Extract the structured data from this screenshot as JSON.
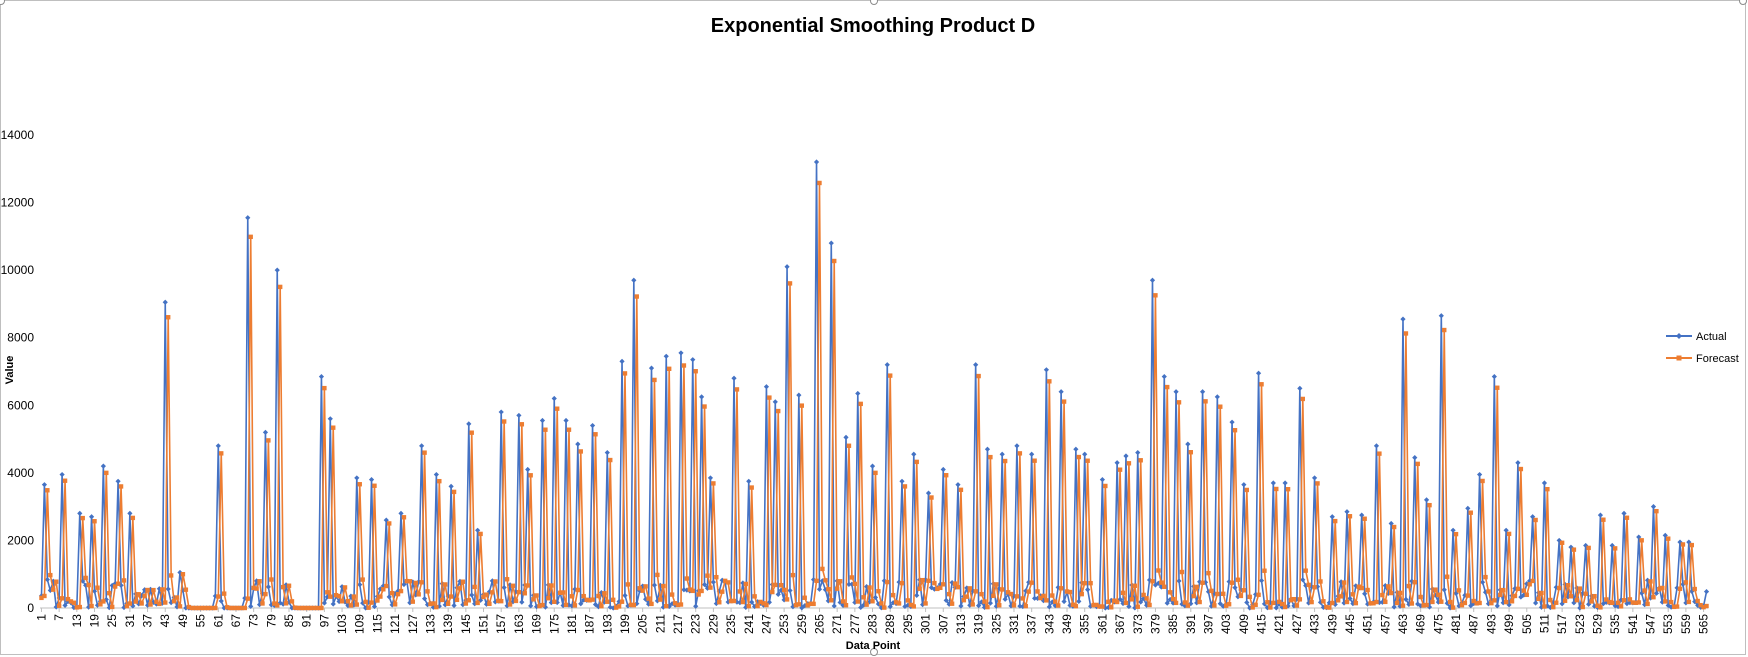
{
  "chart_data": {
    "type": "line",
    "title": "Exponential Smoothing Product D",
    "xlabel": "Data Point",
    "ylabel": "Value",
    "ylim": [
      0,
      14000
    ],
    "y_ticks": [
      0,
      2000,
      4000,
      6000,
      8000,
      10000,
      12000,
      14000
    ],
    "x_range": [
      1,
      566
    ],
    "x_tick_labels": [
      1,
      7,
      13,
      19,
      25,
      31,
      37,
      43,
      49,
      55,
      61,
      67,
      73,
      79,
      85,
      91,
      97,
      103,
      109,
      115,
      121,
      127,
      133,
      139,
      145,
      151,
      157,
      163,
      169,
      175,
      181,
      187,
      193,
      199,
      205,
      211,
      217,
      223,
      229,
      235,
      241,
      247,
      253,
      259,
      265,
      271,
      277,
      283,
      289,
      295,
      301,
      307,
      313,
      319,
      325,
      331,
      337,
      343,
      349,
      355,
      361,
      367,
      373,
      379,
      385,
      391,
      397,
      403,
      409,
      415,
      421,
      427,
      433,
      439,
      445,
      451,
      457,
      463,
      469,
      475,
      481,
      487,
      493,
      499,
      505,
      511,
      517,
      523,
      529,
      535,
      541,
      547,
      553,
      559,
      565
    ],
    "legend_position": "right",
    "grid": false,
    "series": [
      {
        "name": "Actual",
        "color": "#4472C4",
        "marker": "diamond"
      },
      {
        "name": "Forecast",
        "color": "#ED7D31",
        "marker": "square"
      }
    ],
    "peaks": [
      {
        "x": 2,
        "y": 3650
      },
      {
        "x": 8,
        "y": 3950
      },
      {
        "x": 14,
        "y": 2800
      },
      {
        "x": 18,
        "y": 2700
      },
      {
        "x": 22,
        "y": 4200
      },
      {
        "x": 27,
        "y": 3750
      },
      {
        "x": 31,
        "y": 2800
      },
      {
        "x": 43,
        "y": 9050
      },
      {
        "x": 48,
        "y": 1050
      },
      {
        "x": 61,
        "y": 4800
      },
      {
        "x": 71,
        "y": 11550
      },
      {
        "x": 77,
        "y": 5200
      },
      {
        "x": 81,
        "y": 10000
      },
      {
        "x": 96,
        "y": 6850
      },
      {
        "x": 99,
        "y": 5600
      },
      {
        "x": 108,
        "y": 3850
      },
      {
        "x": 113,
        "y": 3800
      },
      {
        "x": 118,
        "y": 2600
      },
      {
        "x": 123,
        "y": 2800
      },
      {
        "x": 130,
        "y": 4800
      },
      {
        "x": 135,
        "y": 3950
      },
      {
        "x": 140,
        "y": 3600
      },
      {
        "x": 146,
        "y": 5450
      },
      {
        "x": 149,
        "y": 2300
      },
      {
        "x": 157,
        "y": 5800
      },
      {
        "x": 163,
        "y": 5700
      },
      {
        "x": 166,
        "y": 4100
      },
      {
        "x": 171,
        "y": 5550
      },
      {
        "x": 175,
        "y": 6200
      },
      {
        "x": 179,
        "y": 5550
      },
      {
        "x": 183,
        "y": 4850
      },
      {
        "x": 188,
        "y": 5400
      },
      {
        "x": 193,
        "y": 4600
      },
      {
        "x": 198,
        "y": 7300
      },
      {
        "x": 202,
        "y": 9700
      },
      {
        "x": 208,
        "y": 7100
      },
      {
        "x": 213,
        "y": 7450
      },
      {
        "x": 218,
        "y": 7550
      },
      {
        "x": 222,
        "y": 7350
      },
      {
        "x": 225,
        "y": 6250
      },
      {
        "x": 228,
        "y": 3850
      },
      {
        "x": 236,
        "y": 6800
      },
      {
        "x": 241,
        "y": 3750
      },
      {
        "x": 247,
        "y": 6550
      },
      {
        "x": 250,
        "y": 6100
      },
      {
        "x": 254,
        "y": 10100
      },
      {
        "x": 258,
        "y": 6300
      },
      {
        "x": 264,
        "y": 13200
      },
      {
        "x": 269,
        "y": 10800
      },
      {
        "x": 274,
        "y": 5050
      },
      {
        "x": 278,
        "y": 6350
      },
      {
        "x": 283,
        "y": 4200
      },
      {
        "x": 288,
        "y": 7200
      },
      {
        "x": 293,
        "y": 3750
      },
      {
        "x": 297,
        "y": 4550
      },
      {
        "x": 302,
        "y": 3400
      },
      {
        "x": 307,
        "y": 4100
      },
      {
        "x": 312,
        "y": 3650
      },
      {
        "x": 318,
        "y": 7200
      },
      {
        "x": 322,
        "y": 4700
      },
      {
        "x": 327,
        "y": 4550
      },
      {
        "x": 332,
        "y": 4800
      },
      {
        "x": 337,
        "y": 4550
      },
      {
        "x": 342,
        "y": 7050
      },
      {
        "x": 347,
        "y": 6400
      },
      {
        "x": 352,
        "y": 4700
      },
      {
        "x": 355,
        "y": 4550
      },
      {
        "x": 361,
        "y": 3800
      },
      {
        "x": 366,
        "y": 4300
      },
      {
        "x": 369,
        "y": 4500
      },
      {
        "x": 373,
        "y": 4600
      },
      {
        "x": 378,
        "y": 9700
      },
      {
        "x": 382,
        "y": 6850
      },
      {
        "x": 386,
        "y": 6400
      },
      {
        "x": 390,
        "y": 4850
      },
      {
        "x": 395,
        "y": 6400
      },
      {
        "x": 400,
        "y": 6250
      },
      {
        "x": 405,
        "y": 5500
      },
      {
        "x": 409,
        "y": 3650
      },
      {
        "x": 414,
        "y": 6950
      },
      {
        "x": 419,
        "y": 3700
      },
      {
        "x": 423,
        "y": 3700
      },
      {
        "x": 428,
        "y": 6500
      },
      {
        "x": 433,
        "y": 3850
      },
      {
        "x": 439,
        "y": 2700
      },
      {
        "x": 444,
        "y": 2850
      },
      {
        "x": 449,
        "y": 2750
      },
      {
        "x": 454,
        "y": 4800
      },
      {
        "x": 459,
        "y": 2500
      },
      {
        "x": 463,
        "y": 8550
      },
      {
        "x": 467,
        "y": 4450
      },
      {
        "x": 471,
        "y": 3200
      },
      {
        "x": 476,
        "y": 8650
      },
      {
        "x": 480,
        "y": 2300
      },
      {
        "x": 485,
        "y": 2950
      },
      {
        "x": 489,
        "y": 3950
      },
      {
        "x": 494,
        "y": 6850
      },
      {
        "x": 498,
        "y": 2300
      },
      {
        "x": 502,
        "y": 4300
      },
      {
        "x": 507,
        "y": 2700
      },
      {
        "x": 511,
        "y": 3700
      },
      {
        "x": 516,
        "y": 2000
      },
      {
        "x": 520,
        "y": 1800
      },
      {
        "x": 525,
        "y": 1850
      },
      {
        "x": 530,
        "y": 2750
      },
      {
        "x": 534,
        "y": 1850
      },
      {
        "x": 538,
        "y": 2800
      },
      {
        "x": 543,
        "y": 2100
      },
      {
        "x": 548,
        "y": 3000
      },
      {
        "x": 552,
        "y": 2150
      },
      {
        "x": 557,
        "y": 1950
      },
      {
        "x": 560,
        "y": 1950
      }
    ],
    "zero_ranges": [
      [
        50,
        59
      ],
      [
        63,
        69
      ],
      [
        86,
        95
      ]
    ]
  }
}
